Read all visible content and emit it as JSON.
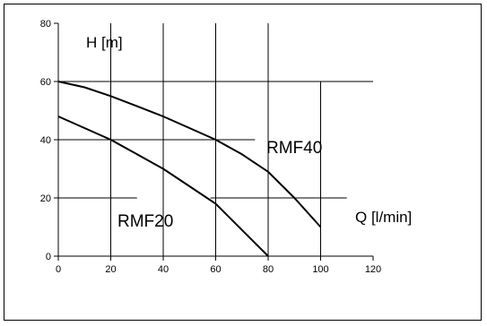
{
  "chart_data": {
    "type": "line",
    "xlim": [
      0,
      120
    ],
    "ylim": [
      0,
      80
    ],
    "x_ticks": [
      0,
      20,
      40,
      60,
      80,
      100,
      120
    ],
    "y_ticks": [
      0,
      20,
      40,
      60,
      80
    ],
    "ylabel": "H [m]",
    "xlabel": "Q [l/min]",
    "grid": "partial",
    "series": [
      {
        "name": "RMF40",
        "x": [
          0,
          10,
          20,
          30,
          40,
          50,
          60,
          70,
          80,
          90,
          100
        ],
        "y": [
          60,
          58,
          55,
          51.5,
          48,
          44,
          40,
          35,
          29,
          20,
          10
        ]
      },
      {
        "name": "RMF20",
        "x": [
          0,
          10,
          20,
          30,
          40,
          50,
          60,
          70,
          80
        ],
        "y": [
          48,
          44,
          40,
          35,
          30,
          24,
          18,
          9,
          0
        ]
      }
    ],
    "annotations": [
      "RMF40",
      "RMF20"
    ]
  }
}
